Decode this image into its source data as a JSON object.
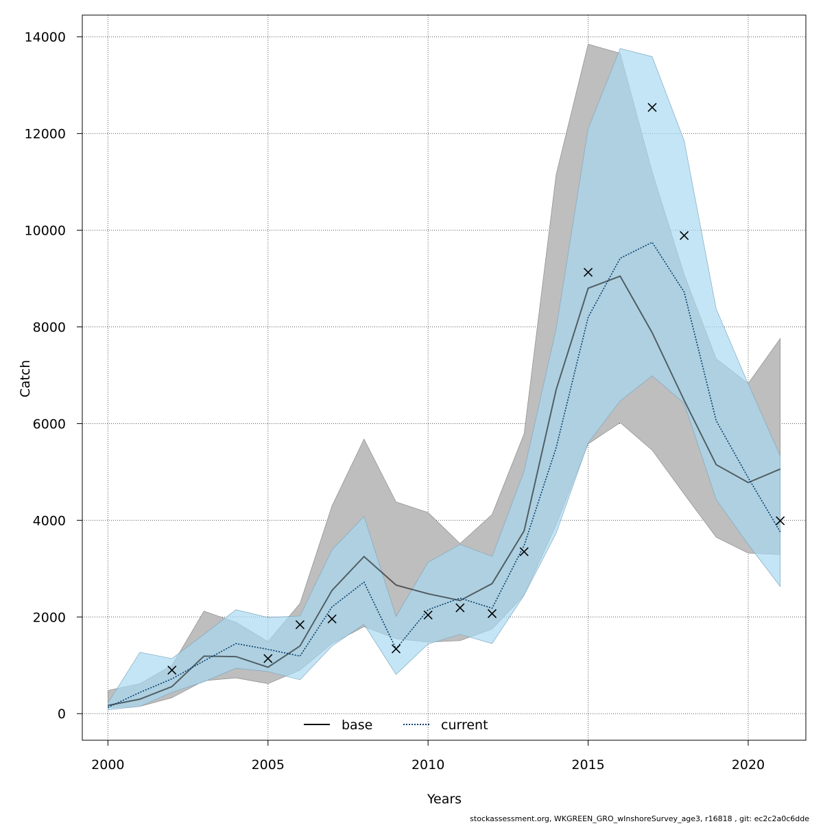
{
  "chart_data": {
    "type": "line",
    "xlabel": "Years",
    "ylabel": "Catch",
    "xlim": [
      1999.2,
      2021.8
    ],
    "ylim": [
      -550,
      14450
    ],
    "x_ticks": [
      2000,
      2005,
      2010,
      2015,
      2020
    ],
    "y_ticks": [
      0,
      2000,
      4000,
      6000,
      8000,
      10000,
      12000,
      14000
    ],
    "grid": true,
    "legend_position": "bottom",
    "x": [
      2000,
      2001,
      2002,
      2003,
      2004,
      2005,
      2006,
      2007,
      2008,
      2009,
      2010,
      2011,
      2012,
      2013,
      2014,
      2015,
      2016,
      2017,
      2018,
      2019,
      2020,
      2021
    ],
    "series": [
      {
        "name": "base",
        "color": "#000000",
        "band_color": "#bebebe",
        "line_style": "solid",
        "values": [
          170,
          300,
          560,
          1190,
          1180,
          960,
          1400,
          2550,
          3250,
          2660,
          2480,
          2340,
          2690,
          3780,
          6700,
          8800,
          9050,
          7880,
          6480,
          5150,
          4780,
          5060
        ],
        "lower": [
          120,
          150,
          330,
          680,
          740,
          620,
          900,
          1450,
          1800,
          1550,
          1480,
          1510,
          1750,
          2450,
          3900,
          5580,
          6020,
          5450,
          4540,
          3650,
          3320,
          3290
        ],
        "upper": [
          480,
          620,
          1000,
          2120,
          1890,
          1490,
          2280,
          4300,
          5680,
          4380,
          4160,
          3520,
          4120,
          5790,
          11150,
          13850,
          13660,
          11210,
          9080,
          7340,
          6830,
          7760
        ]
      },
      {
        "name": "current",
        "color": "#003c6e",
        "band_color": "#a8d8f0",
        "line_style": "dotted",
        "values": [
          130,
          440,
          720,
          1090,
          1450,
          1330,
          1190,
          2210,
          2720,
          1340,
          2150,
          2390,
          2180,
          3480,
          5500,
          8200,
          9420,
          9750,
          8720,
          6060,
          4880,
          3760
        ],
        "lower": [
          80,
          150,
          440,
          660,
          940,
          870,
          700,
          1400,
          1850,
          810,
          1440,
          1640,
          1450,
          2450,
          3730,
          5600,
          6470,
          6990,
          6420,
          4430,
          3500,
          2630
        ],
        "upper": [
          220,
          1270,
          1140,
          1640,
          2150,
          1990,
          2020,
          3390,
          4080,
          2010,
          3130,
          3500,
          3250,
          5020,
          7960,
          12100,
          13760,
          13590,
          11850,
          8370,
          6820,
          5330
        ]
      }
    ],
    "observations": {
      "marker": "x",
      "x": [
        2002,
        2005,
        2006,
        2007,
        2009,
        2010,
        2011,
        2012,
        2013,
        2015,
        2017,
        2018,
        2021
      ],
      "y": [
        900,
        1140,
        1840,
        1960,
        1340,
        2040,
        2190,
        2070,
        3350,
        9130,
        12540,
        9890,
        3990
      ]
    },
    "footer": "stockassessment.org, WKGREEN_GRO_wInshoreSurvey_age3, r16818 , git: ec2c2a0c6dde"
  }
}
